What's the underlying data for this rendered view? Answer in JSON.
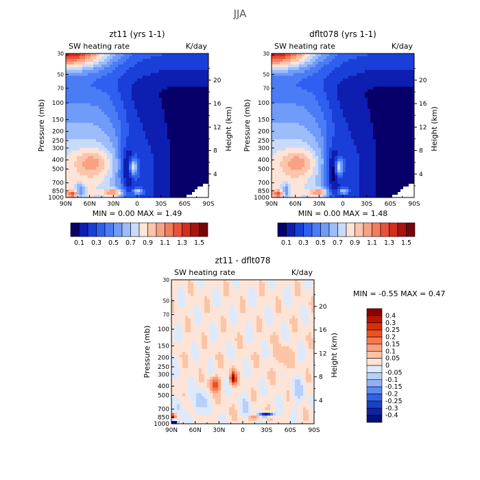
{
  "figure": {
    "title": "JJA"
  },
  "chart_data": [
    {
      "type": "heatmap",
      "title": "zt11 (yrs 1-1)",
      "subtitle_left": "SW heating rate",
      "subtitle_right": "K/day",
      "ylabel": "Pressure (mb)",
      "ylabel_right": "Height (km)",
      "stats": "MIN =   0.00   MAX =   1.49",
      "x_ticks": [
        "90N",
        "60N",
        "30N",
        "0",
        "30S",
        "60S",
        "90S"
      ],
      "x_values": [
        90,
        60,
        30,
        0,
        -30,
        -60,
        -90
      ],
      "y_ticks": [
        "30",
        "50",
        "70",
        "100",
        "150",
        "200",
        "250",
        "300",
        "400",
        "500",
        "700",
        "850",
        "1000"
      ],
      "y_ticks_right": [
        "20",
        "16",
        "12",
        "8",
        "4"
      ],
      "ylim": [
        30,
        1000
      ],
      "y_scale": "log",
      "colorbar": {
        "orientation": "horizontal",
        "labels": [
          "0.1",
          "0.3",
          "0.5",
          "0.7",
          "0.9",
          "1.1",
          "1.3",
          "1.5"
        ]
      }
    },
    {
      "type": "heatmap",
      "title": "dflt078 (yrs 1-1)",
      "subtitle_left": "SW heating rate",
      "subtitle_right": "K/day",
      "ylabel": "Pressure (mb)",
      "ylabel_right": "Height (km)",
      "stats": "MIN =   0.00   MAX =   1.48",
      "x_ticks": [
        "90N",
        "60N",
        "30N",
        "0",
        "30S",
        "60S",
        "90S"
      ],
      "x_values": [
        90,
        60,
        30,
        0,
        -30,
        -60,
        -90
      ],
      "y_ticks": [
        "30",
        "50",
        "70",
        "100",
        "150",
        "200",
        "250",
        "300",
        "400",
        "500",
        "700",
        "850",
        "1000"
      ],
      "y_ticks_right": [
        "20",
        "16",
        "12",
        "8",
        "4"
      ],
      "ylim": [
        30,
        1000
      ],
      "y_scale": "log",
      "colorbar": {
        "orientation": "horizontal",
        "labels": [
          "0.1",
          "0.3",
          "0.5",
          "0.7",
          "0.9",
          "1.1",
          "1.3",
          "1.5"
        ]
      }
    },
    {
      "type": "heatmap",
      "title": "zt11 - dflt078",
      "subtitle_left": "SW heating rate",
      "subtitle_right": "K/day",
      "ylabel": "Pressure (mb)",
      "ylabel_right": "Height (km)",
      "stats": "MIN =  -0.55   MAX =   0.47",
      "x_ticks": [
        "90N",
        "60N",
        "30N",
        "0",
        "30S",
        "60S",
        "90S"
      ],
      "x_values": [
        90,
        60,
        30,
        0,
        -30,
        -60,
        -90
      ],
      "y_ticks": [
        "30",
        "50",
        "70",
        "100",
        "150",
        "200",
        "250",
        "300",
        "400",
        "500",
        "700",
        "850",
        "1000"
      ],
      "y_ticks_right": [
        "20",
        "16",
        "12",
        "8",
        "4"
      ],
      "ylim": [
        30,
        1000
      ],
      "y_scale": "log",
      "colorbar": {
        "orientation": "vertical",
        "labels": [
          "0.4",
          "0.3",
          "0.25",
          "0.2",
          "0.15",
          "0.1",
          "0.05",
          "0",
          "-0.05",
          "-0.1",
          "-0.15",
          "-0.2",
          "-0.25",
          "-0.3",
          "-0.4"
        ]
      }
    }
  ],
  "colors": {
    "seq": [
      "#08006a",
      "#0d1eb0",
      "#1a3ed8",
      "#2e5ff0",
      "#4a7cf6",
      "#6f9bf9",
      "#9cbcfa",
      "#c8dbfb",
      "#fde4d6",
      "#fbc5ab",
      "#f8a283",
      "#f37c5b",
      "#e9523a",
      "#d42c1f",
      "#a8150f",
      "#760708"
    ],
    "div": [
      "#8a0000",
      "#b81500",
      "#d73000",
      "#ee5020",
      "#f47a4e",
      "#f9a07c",
      "#fbc4a6",
      "#fde4d6",
      "#ddeafc",
      "#b7d0f9",
      "#8fb1f7",
      "#5b8af2",
      "#2f63e6",
      "#1a3fc8",
      "#0e24a0",
      "#06107a"
    ]
  }
}
